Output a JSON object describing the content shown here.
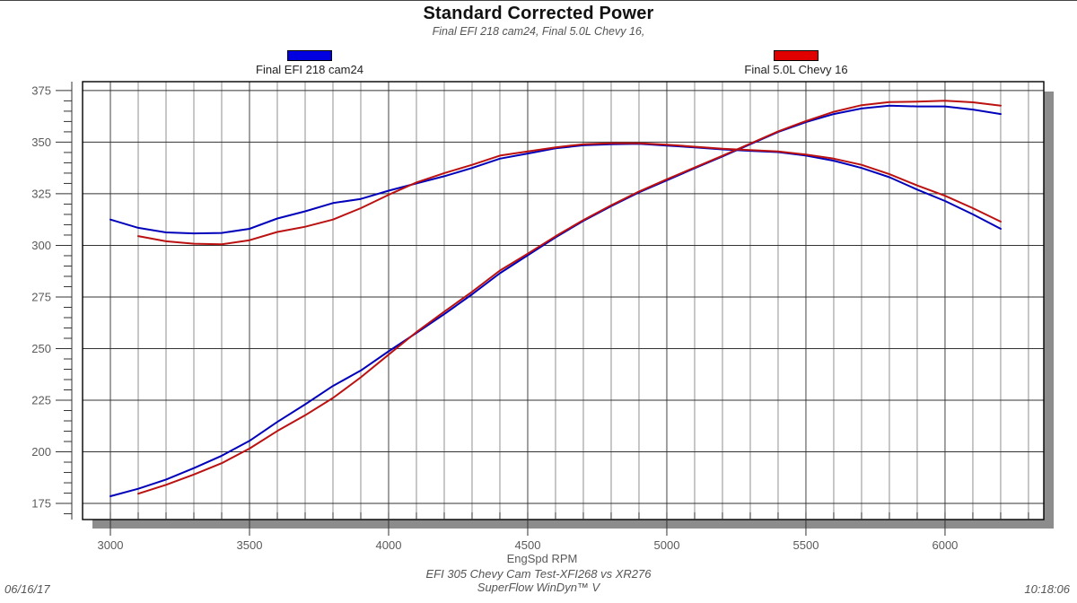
{
  "header": {
    "title": "Standard Corrected Power",
    "subtitle": "Final EFI 218 cam24, Final 5.0L Chevy 16,"
  },
  "legend": {
    "items": [
      {
        "label": "Final EFI 218 cam24",
        "color": "#0000e0"
      },
      {
        "label": "Final 5.0L Chevy 16",
        "color": "#e00000"
      }
    ]
  },
  "footer": {
    "date": "06/16/17",
    "test_title": "EFI 305 Chevy Cam Test-XFI268 vs XR276",
    "software": "SuperFlow WinDyn™ V",
    "time": "10:18:06"
  },
  "chart_data": {
    "type": "line",
    "title": "Standard Corrected Power",
    "subtitle": "Final EFI 218 cam24, Final 5.0L Chevy 16,",
    "xlabel": "EngSpd RPM",
    "ylabel": "",
    "xlim": [
      2900,
      6355
    ],
    "ylim": [
      167.2,
      379.3
    ],
    "x_major_ticks": [
      3000,
      3500,
      4000,
      4500,
      5000,
      5500,
      6000
    ],
    "x_minor_step": 100,
    "y_major_ticks": [
      175,
      200,
      225,
      250,
      275,
      300,
      325,
      350,
      375
    ],
    "y_minor_step": 5,
    "grid": "on",
    "legend_position": "top",
    "colors": {
      "blue_curve": "#0000bb",
      "red_curve": "#bb1111",
      "grid_minor": "#909090",
      "grid_major_v": "#444444",
      "grid_major_h": "#333333",
      "axis": "#333333",
      "tick_label": "#5a5a5a"
    },
    "series": [
      {
        "name": "Final EFI 218 cam24 torque",
        "color": "#0000bb",
        "x": [
          3000,
          3100,
          3200,
          3300,
          3400,
          3500,
          3600,
          3700,
          3800,
          3900,
          4000,
          4100,
          4200,
          4300,
          4400,
          4500,
          4600,
          4700,
          4800,
          4900,
          5000,
          5100,
          5200,
          5300,
          5400,
          5500,
          5600,
          5700,
          5800,
          5900,
          6000,
          6100,
          6200
        ],
        "values": [
          312.5,
          308.5,
          306.3,
          305.8,
          306,
          308,
          313,
          316.5,
          320.5,
          322.5,
          326.5,
          330,
          333.5,
          337.5,
          342,
          344.5,
          347,
          348.5,
          349,
          349.2,
          348.3,
          347.5,
          346.5,
          345.8,
          345.2,
          343.5,
          341,
          337.5,
          333,
          327,
          321.5,
          315,
          308
        ]
      },
      {
        "name": "Final EFI 218 cam24 power",
        "color": "#0000bb",
        "x": [
          3000,
          3100,
          3200,
          3300,
          3400,
          3500,
          3600,
          3700,
          3800,
          3900,
          4000,
          4100,
          4200,
          4300,
          4400,
          4500,
          4600,
          4700,
          4800,
          4900,
          5000,
          5100,
          5200,
          5300,
          5400,
          5500,
          5600,
          5700,
          5800,
          5900,
          6000,
          6100,
          6200
        ],
        "values": [
          178.5,
          182.1,
          186.6,
          192.1,
          198.1,
          205.3,
          214.5,
          223,
          231.9,
          239.4,
          248.7,
          257.6,
          266.7,
          276.3,
          286.5,
          295.2,
          303.9,
          311.9,
          319,
          325.7,
          331.5,
          337.4,
          343.1,
          349,
          354.9,
          359.7,
          363.6,
          366.3,
          367.7,
          367.3,
          367.3,
          365.8,
          363.6
        ]
      },
      {
        "name": "Final 5.0L Chevy 16 torque",
        "color": "#bb1111",
        "x": [
          3100,
          3200,
          3300,
          3400,
          3500,
          3600,
          3700,
          3800,
          3900,
          4000,
          4100,
          4200,
          4300,
          4400,
          4500,
          4600,
          4700,
          4800,
          4900,
          5000,
          5100,
          5200,
          5300,
          5400,
          5500,
          5600,
          5700,
          5800,
          5900,
          6000,
          6100,
          6200
        ],
        "values": [
          304.5,
          302,
          300.8,
          300.5,
          302.5,
          306.5,
          309,
          312.5,
          318,
          324.5,
          330.5,
          335,
          339,
          343.5,
          345.5,
          347.5,
          349,
          349.5,
          349.5,
          348.8,
          347.8,
          346.8,
          346.2,
          345.5,
          344,
          342,
          339,
          334.5,
          329,
          324,
          318,
          311.5
        ]
      },
      {
        "name": "Final 5.0L Chevy 16 power",
        "color": "#bb1111",
        "x": [
          3100,
          3200,
          3300,
          3400,
          3500,
          3600,
          3700,
          3800,
          3900,
          4000,
          4100,
          4200,
          4300,
          4400,
          4500,
          4600,
          4700,
          4800,
          4900,
          5000,
          5100,
          5200,
          5300,
          5400,
          5500,
          5600,
          5700,
          5800,
          5900,
          6000,
          6100,
          6200
        ],
        "values": [
          179.7,
          184,
          189,
          194.5,
          201.6,
          210.1,
          217.7,
          226.1,
          236.1,
          247.1,
          258,
          267.9,
          277.5,
          287.8,
          296,
          304.4,
          312.3,
          319.4,
          326.1,
          332,
          337.7,
          343.4,
          349.3,
          355.2,
          360.2,
          364.7,
          367.9,
          369.4,
          369.6,
          370.1,
          369.3,
          367.7
        ]
      }
    ]
  }
}
